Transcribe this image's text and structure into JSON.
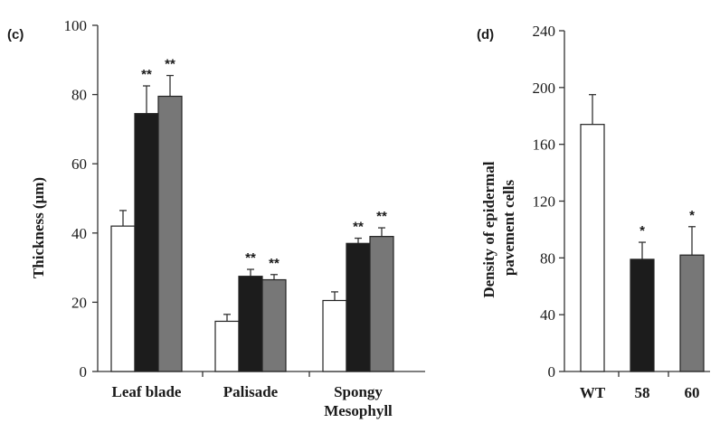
{
  "chart_data": [
    {
      "panel_label": "(c)",
      "type": "bar",
      "categories": [
        "Leaf blade",
        "Palisade",
        "Spongy Mesophyll"
      ],
      "category_lines": [
        [
          "Leaf blade"
        ],
        [
          "Palisade"
        ],
        [
          "Spongy",
          "Mesophyll"
        ]
      ],
      "ylabel": "Thickness (μm)",
      "xlabel": "",
      "ylim": [
        0,
        100
      ],
      "yticks": [
        0,
        20,
        40,
        60,
        80,
        100
      ],
      "series": [
        {
          "color": "#ffffff",
          "values": [
            42,
            14.5,
            20.5
          ],
          "errors": [
            4.5,
            2,
            2.5
          ],
          "sig": [
            "",
            "",
            ""
          ]
        },
        {
          "color": "#1c1c1c",
          "values": [
            74.5,
            27.5,
            37
          ],
          "errors": [
            8,
            2,
            1.5
          ],
          "sig": [
            "**",
            "**",
            "**"
          ]
        },
        {
          "color": "#777777",
          "values": [
            79.5,
            26.5,
            39
          ],
          "errors": [
            6,
            1.5,
            2.5
          ],
          "sig": [
            "**",
            "**",
            "**"
          ]
        }
      ],
      "grid": false,
      "legend": "none"
    },
    {
      "panel_label": "(d)",
      "type": "bar",
      "categories": [
        "WT",
        "58",
        "60"
      ],
      "ylabel": "Density of epidermal pavement cells",
      "ylabel_lines": [
        "Density of epidermal",
        "pavement cells"
      ],
      "xlabel": "",
      "ylim": [
        0,
        240
      ],
      "yticks": [
        0,
        40,
        80,
        120,
        160,
        200,
        240
      ],
      "values": [
        174,
        79,
        82
      ],
      "errors": [
        21,
        12,
        20
      ],
      "colors": [
        "#ffffff",
        "#1c1c1c",
        "#777777"
      ],
      "sig": [
        "",
        "*",
        "*"
      ],
      "grid": false,
      "legend": "none"
    }
  ]
}
